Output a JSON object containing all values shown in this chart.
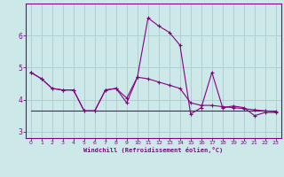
{
  "xlabel": "Windchill (Refroidissement éolien,°C)",
  "background_color": "#cce8e8",
  "grid_color": "#aacccc",
  "line_color": "#880088",
  "xlim": [
    -0.5,
    23.5
  ],
  "ylim": [
    2.8,
    7.0
  ],
  "yticks": [
    3,
    4,
    5,
    6
  ],
  "xticks": [
    0,
    1,
    2,
    3,
    4,
    5,
    6,
    7,
    8,
    9,
    10,
    11,
    12,
    13,
    14,
    15,
    16,
    17,
    18,
    19,
    20,
    21,
    22,
    23
  ],
  "line1_x": [
    0,
    1,
    2,
    3,
    4,
    5,
    6,
    7,
    8,
    9,
    10,
    11,
    12,
    13,
    14,
    15,
    16,
    17,
    18,
    19,
    20,
    21,
    22,
    23
  ],
  "line1_y": [
    4.85,
    4.65,
    4.35,
    4.3,
    4.3,
    3.65,
    3.65,
    4.3,
    4.35,
    3.9,
    4.7,
    6.55,
    6.3,
    6.1,
    5.7,
    3.55,
    3.75,
    4.85,
    3.75,
    3.8,
    3.75,
    3.5,
    3.6,
    3.6
  ],
  "line2_x": [
    0,
    1,
    2,
    3,
    4,
    5,
    6,
    7,
    8,
    9,
    10,
    11,
    12,
    13,
    14,
    15,
    16,
    17,
    18,
    19,
    20,
    21,
    22,
    23
  ],
  "line2_y": [
    4.85,
    4.65,
    4.35,
    4.3,
    4.3,
    3.65,
    3.65,
    4.3,
    4.35,
    4.05,
    4.7,
    4.65,
    4.55,
    4.45,
    4.35,
    3.9,
    3.82,
    3.82,
    3.78,
    3.75,
    3.72,
    3.68,
    3.65,
    3.62
  ],
  "line3_x": [
    0,
    1,
    2,
    3,
    4,
    5,
    6,
    7,
    8,
    9,
    10,
    11,
    12,
    13,
    14,
    15,
    16,
    17,
    18,
    19,
    20,
    21,
    22,
    23
  ],
  "line3_y": [
    3.65,
    3.65,
    3.65,
    3.65,
    3.65,
    3.65,
    3.65,
    3.65,
    3.65,
    3.65,
    3.65,
    3.65,
    3.65,
    3.65,
    3.65,
    3.65,
    3.65,
    3.65,
    3.65,
    3.65,
    3.65,
    3.65,
    3.65,
    3.65
  ]
}
